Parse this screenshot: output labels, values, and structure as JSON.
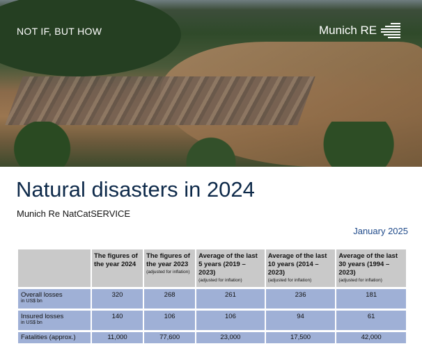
{
  "hero": {
    "tagline": "NOT IF, BUT HOW",
    "logo": "Munich RE"
  },
  "title": "Natural disasters in 2024",
  "subtitle": "Munich Re NatCatSERVICE",
  "date": "January 2025",
  "table": {
    "headers": [
      {
        "title": "The figures of the year 2024",
        "note": ""
      },
      {
        "title": "The figures of the year 2023",
        "note": "(adjusted for inflation)"
      },
      {
        "title": "Average of the last 5 years (2019 – 2023)",
        "note": "(adjusted for inflation)"
      },
      {
        "title": "Average of the last 10 years (2014 – 2023)",
        "note": "(adjusted for inflation)"
      },
      {
        "title": "Average of the last 30 years (1994 – 2023)",
        "note": "(adjusted for inflation)"
      }
    ],
    "rows": [
      {
        "label": "Overall losses",
        "unit": "in US$ bn",
        "values": [
          "320",
          "268",
          "261",
          "236",
          "181"
        ]
      },
      {
        "label": "Insured losses",
        "unit": "in US$ bn",
        "values": [
          "140",
          "106",
          "106",
          "94",
          "61"
        ]
      },
      {
        "label": "Fatalities (approx.)",
        "unit": "",
        "values": [
          "11,000",
          "77,600",
          "23,000",
          "17,500",
          "42,000"
        ]
      }
    ]
  }
}
